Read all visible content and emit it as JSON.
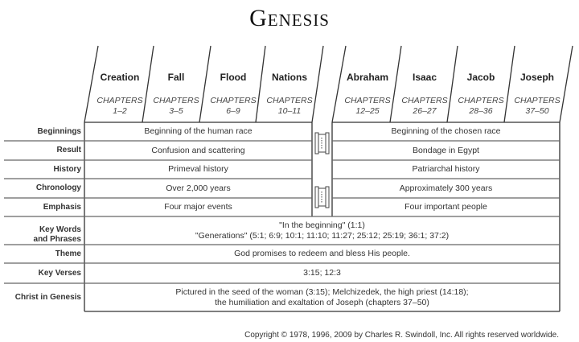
{
  "title": "Genesis",
  "sections": [
    {
      "name": "Creation",
      "chapters_label": "CHAPTERS",
      "chapters": "1–2"
    },
    {
      "name": "Fall",
      "chapters_label": "CHAPTERS",
      "chapters": "3–5"
    },
    {
      "name": "Flood",
      "chapters_label": "CHAPTERS",
      "chapters": "6–9"
    },
    {
      "name": "Nations",
      "chapters_label": "CHAPTERS",
      "chapters": "10–11"
    },
    {
      "name": "Abraham",
      "chapters_label": "CHAPTERS",
      "chapters": "12–25"
    },
    {
      "name": "Isaac",
      "chapters_label": "CHAPTERS",
      "chapters": "26–27"
    },
    {
      "name": "Jacob",
      "chapters_label": "CHAPTERS",
      "chapters": "28–36"
    },
    {
      "name": "Joseph",
      "chapters_label": "CHAPTERS",
      "chapters": "37–50"
    }
  ],
  "rows": {
    "beginnings": {
      "label": "Beginnings",
      "left": "Beginning of the human race",
      "right": "Beginning of the chosen race"
    },
    "result": {
      "label": "Result",
      "left": "Confusion and scattering",
      "right": "Bondage in Egypt"
    },
    "history": {
      "label": "History",
      "left": "Primeval history",
      "right": "Patriarchal history"
    },
    "chronology": {
      "label": "Chronology",
      "left": "Over 2,000 years",
      "right": "Approximately 300 years"
    },
    "emphasis": {
      "label": "Emphasis",
      "left": "Four major events",
      "right": "Four important people"
    },
    "key_words": {
      "label1": "Key Words",
      "label2": "and Phrases",
      "line1": "\"In the beginning\" (1:1)",
      "line2": "\"Generations\" (5:1; 6:9; 10:1; 11:10; 11:27; 25:12; 25:19; 36:1; 37:2)"
    },
    "theme": {
      "label": "Theme",
      "text": "God promises to redeem and bless His people."
    },
    "key_verses": {
      "label": "Key Verses",
      "text": "3:15; 12:3"
    },
    "christ": {
      "label": "Christ in Genesis",
      "line1": "Pictured in the seed of the woman (3:15); Melchizedek, the high priest (14:18);",
      "line2": "the humiliation and exaltation of Joseph (chapters 37–50)"
    }
  },
  "divider_icon": "scroll-icon",
  "copyright": "Copyright © 1978, 1996, 2009 by Charles R. Swindoll, Inc. All rights reserved worldwide."
}
